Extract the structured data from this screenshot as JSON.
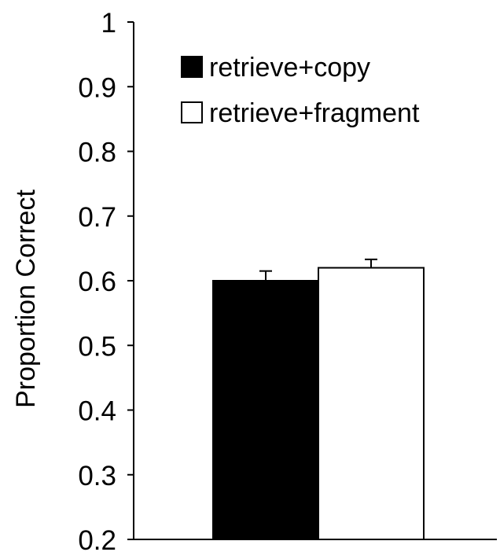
{
  "chart_data": {
    "type": "bar",
    "title": "",
    "xlabel": "",
    "ylabel": "Proportion Correct",
    "ylim": [
      0.2,
      1
    ],
    "y_ticks": [
      "0.2",
      "0.3",
      "0.4",
      "0.5",
      "0.6",
      "0.7",
      "0.8",
      "0.9",
      "1"
    ],
    "grid": false,
    "legend_position": "top-left",
    "series": [
      {
        "name": "retrieve+copy",
        "value": 0.6,
        "error": 0.015,
        "color": "#000000"
      },
      {
        "name": "retrieve+fragment",
        "value": 0.62,
        "error": 0.013,
        "color": "#ffffff"
      }
    ]
  }
}
